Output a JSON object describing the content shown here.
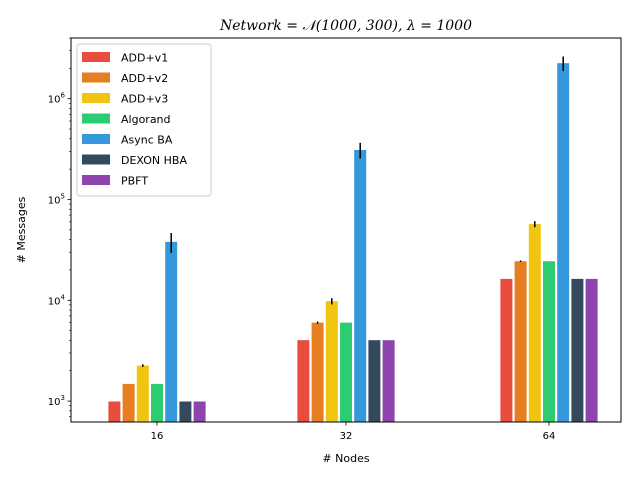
{
  "chart_data": {
    "type": "bar",
    "title": "Network = 𝒩(1000, 300), λ = 1000",
    "xlabel": "# Nodes",
    "ylabel": "# Messages",
    "yscale": "log",
    "ylim": [
      620,
      4000000
    ],
    "yticks": [
      {
        "value": 1000,
        "base": "10",
        "exp": "3"
      },
      {
        "value": 10000,
        "base": "10",
        "exp": "4"
      },
      {
        "value": 100000,
        "base": "10",
        "exp": "5"
      },
      {
        "value": 1000000,
        "base": "10",
        "exp": "6"
      }
    ],
    "categories": [
      "16",
      "32",
      "64"
    ],
    "legend_position": "upper-left",
    "grid": false,
    "series": [
      {
        "name": "ADD+v1",
        "color": "#e74c3c",
        "values": [
          990,
          4020,
          16300
        ],
        "err": [
          0,
          0,
          0
        ]
      },
      {
        "name": "ADD+v2",
        "color": "#e67e22",
        "values": [
          1480,
          6000,
          24400
        ],
        "err": [
          0,
          150,
          400
        ]
      },
      {
        "name": "ADD+v3",
        "color": "#f1c40f",
        "values": [
          2250,
          9800,
          57000
        ],
        "err": [
          70,
          700,
          4000
        ]
      },
      {
        "name": "Algorand",
        "color": "#2ecc71",
        "values": [
          1480,
          6000,
          24400
        ],
        "err": [
          0,
          0,
          0
        ]
      },
      {
        "name": "Async BA",
        "color": "#3498db",
        "values": [
          38000,
          310000,
          2250000
        ],
        "err": [
          8500,
          55000,
          370000
        ]
      },
      {
        "name": "DEXON HBA",
        "color": "#34495e",
        "values": [
          990,
          4020,
          16300
        ],
        "err": [
          0,
          0,
          0
        ]
      },
      {
        "name": "PBFT",
        "color": "#8e44ad",
        "values": [
          990,
          4020,
          16300
        ],
        "err": [
          0,
          0,
          0
        ]
      }
    ]
  }
}
